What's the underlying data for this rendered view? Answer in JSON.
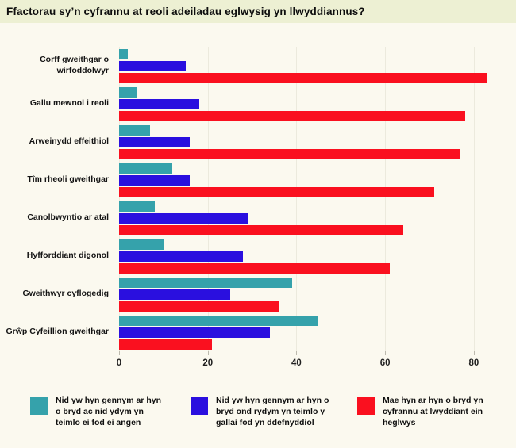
{
  "title": "Ffactorau sy’n cyfrannu at reoli adeiladau eglwysig yn llwyddiannus?",
  "colors": {
    "title_strip_bg": "#edf0d3",
    "page_bg": "#fbf9ef",
    "gridline": "#eceadd",
    "teal": "#35a2ab",
    "blue": "#2a0fdf",
    "red": "#fa101f"
  },
  "chart_data": {
    "type": "bar",
    "orientation": "horizontal",
    "title": "Ffactorau sy’n cyfrannu at reoli adeiladau eglwysig yn llwyddiannus?",
    "categories": [
      "Corff gweithgar o wirfoddolwyr",
      "Gallu mewnol i reoli",
      "Arweinydd effeithiol",
      "Tîm rheoli gweithgar",
      "Canolbwyntio ar atal",
      "Hyfforddiant digonol",
      "Gweithwyr cyflogedig",
      "Grŵp Cyfeillion gweithgar"
    ],
    "series": [
      {
        "id": "teal",
        "name": "Nid yw hyn gennym ar hyn o bryd ac nid ydym yn teimlo ei fod ei angen",
        "color": "#35a2ab",
        "values": [
          2,
          4,
          7,
          12,
          8,
          10,
          39,
          45
        ]
      },
      {
        "id": "blue",
        "name": "Nid yw hyn gennym ar hyn o bryd ond rydym yn teimlo y gallai fod yn ddefnyddiol",
        "color": "#2a0fdf",
        "values": [
          15,
          18,
          16,
          16,
          29,
          28,
          25,
          34
        ]
      },
      {
        "id": "red",
        "name": "Mae hyn ar hyn o bryd yn cyfrannu at lwyddiant ein heglwys",
        "color": "#fa101f",
        "values": [
          83,
          78,
          77,
          71,
          64,
          61,
          36,
          21
        ]
      }
    ],
    "xticks": [
      0,
      20,
      40,
      60,
      80
    ],
    "xlim": [
      0,
      87
    ],
    "grid": "vertical",
    "legend_position": "bottom",
    "xlabel": "",
    "ylabel": ""
  }
}
